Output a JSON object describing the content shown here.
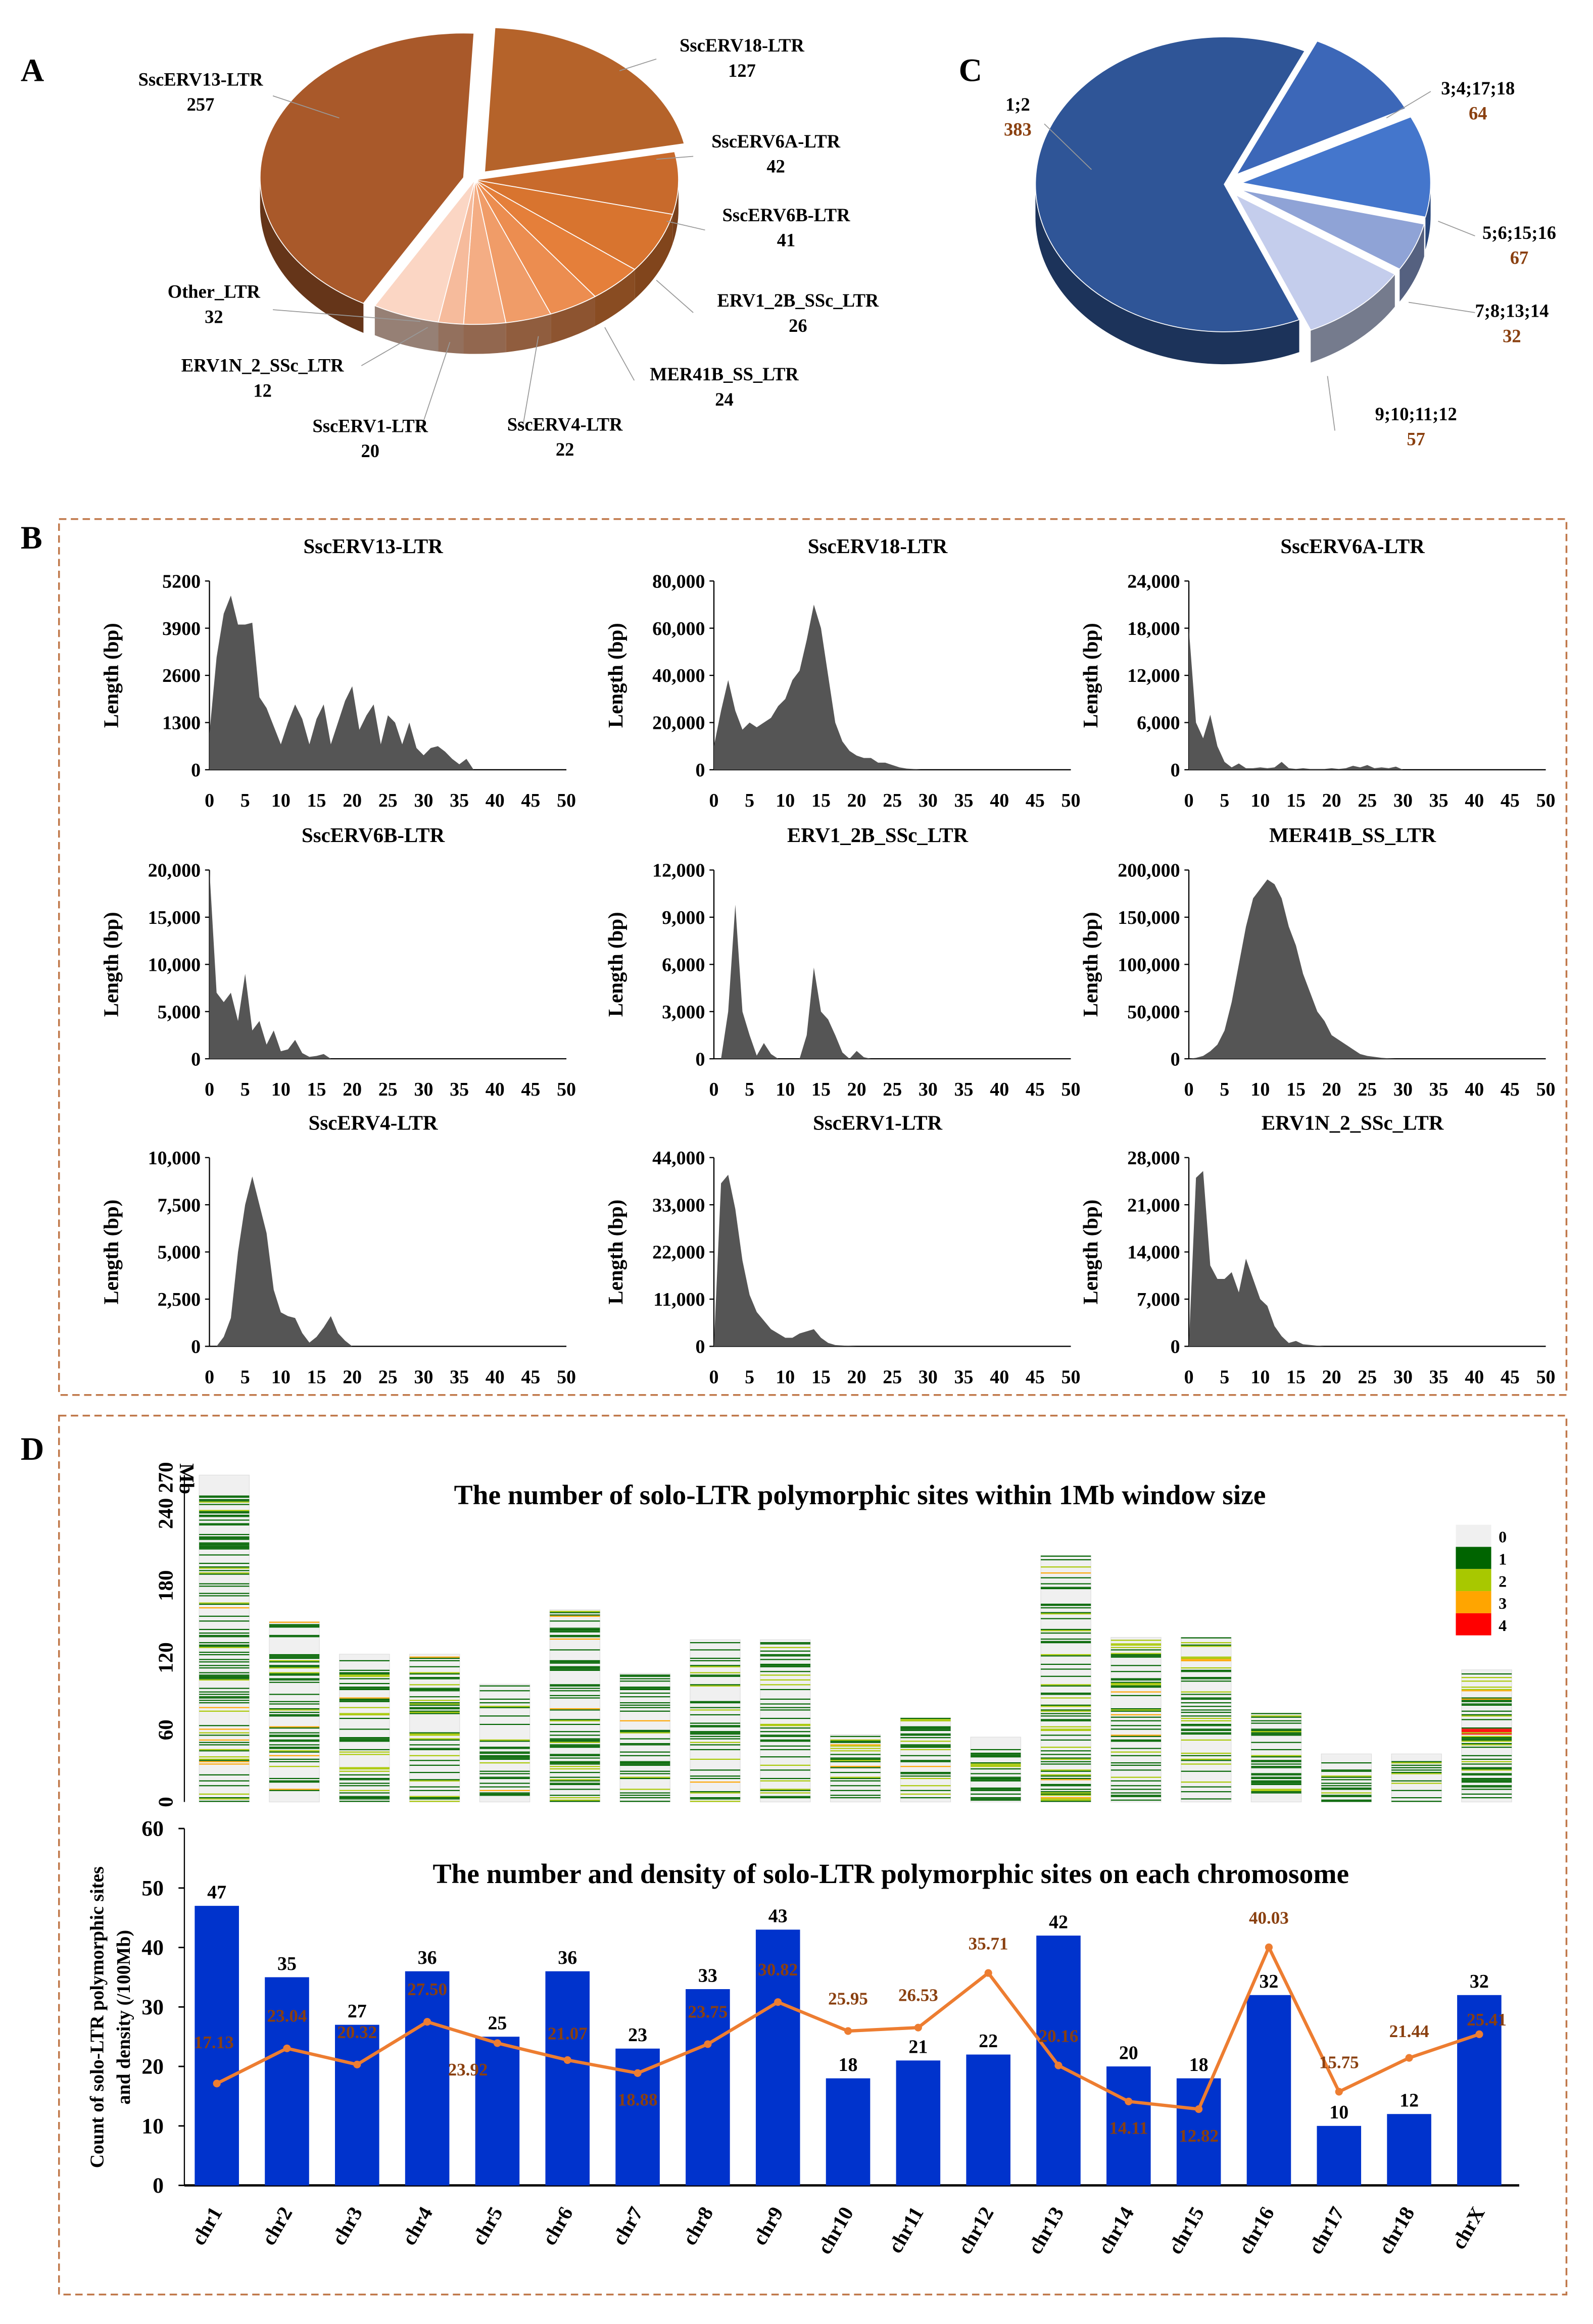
{
  "panel_labels": [
    "A",
    "B",
    "C",
    "D"
  ],
  "chart_data": [
    {
      "id": "A",
      "type": "pie",
      "slices": [
        {
          "label": "SscERV18-LTR",
          "value": 127,
          "color": "#b5632a"
        },
        {
          "label": "SscERV6A-LTR",
          "value": 42,
          "color": "#c86a2c"
        },
        {
          "label": "SscERV6B-LTR",
          "value": 41,
          "color": "#d8742f"
        },
        {
          "label": "ERV1_2B_SSc_LTR",
          "value": 26,
          "color": "#e57f3a"
        },
        {
          "label": "MER41B_SS_LTR",
          "value": 24,
          "color": "#ec8d50"
        },
        {
          "label": "SscERV4-LTR",
          "value": 22,
          "color": "#f09c68"
        },
        {
          "label": "SscERV1-LTR",
          "value": 20,
          "color": "#f4ad84"
        },
        {
          "label": "ERV1N_2_SSc_LTR",
          "value": 12,
          "color": "#f6bb9c"
        },
        {
          "label": "Other_LTR",
          "value": 32,
          "color": "#fbd6c4"
        },
        {
          "label": "SscERV13-LTR",
          "value": 257,
          "color": "#a9592a"
        }
      ]
    },
    {
      "id": "C",
      "type": "pie",
      "slices": [
        {
          "label": "3;4;17;18",
          "value": 64,
          "color": "#3c67b8"
        },
        {
          "label": "5;6;15;16",
          "value": 67,
          "color": "#4476cc"
        },
        {
          "label": "7;8;13;14",
          "value": 32,
          "color": "#8fa3d6"
        },
        {
          "label": "9;10;11;12",
          "value": 57,
          "color": "#c4cdec"
        },
        {
          "label": "1;2",
          "value": 383,
          "color": "#2f5597"
        }
      ]
    },
    {
      "id": "B",
      "type": "area",
      "xlim": [
        0,
        50
      ],
      "xticks": [
        "0",
        "5",
        "10",
        "15",
        "20",
        "25",
        "30",
        "35",
        "40",
        "45",
        "50"
      ],
      "ylabel": "Length (bp)",
      "panels": [
        {
          "title": "SscERV13-LTR",
          "ymax": 5200,
          "yticks": [
            "0",
            "1300",
            "2600",
            "3900",
            "5200"
          ],
          "values": [
            1000,
            3100,
            4300,
            4800,
            4000,
            4000,
            4050,
            2000,
            1700,
            1200,
            700,
            1300,
            1800,
            1400,
            700,
            1400,
            1800,
            700,
            1300,
            1900,
            2300,
            1100,
            1500,
            1800,
            700,
            1500,
            1300,
            700,
            1300,
            600,
            400,
            600,
            650,
            500,
            300,
            150,
            300,
            0
          ]
        },
        {
          "title": "SscERV18-LTR",
          "ymax": 80000,
          "yticks": [
            "0",
            "20,000",
            "40,000",
            "60,000",
            "80,000"
          ],
          "values": [
            10000,
            25000,
            38000,
            25000,
            17000,
            20000,
            18000,
            20000,
            22000,
            27000,
            30000,
            38000,
            42000,
            55000,
            70000,
            60000,
            40000,
            20000,
            12000,
            8000,
            6000,
            5000,
            5000,
            3000,
            3000,
            2000,
            1000,
            500,
            300,
            0
          ]
        },
        {
          "title": "SscERV6A-LTR",
          "ymax": 24000,
          "yticks": [
            "0",
            "6,000",
            "12,000",
            "18,000",
            "24,000"
          ],
          "values": [
            18000,
            6000,
            4000,
            7000,
            3000,
            1000,
            300,
            800,
            200,
            200,
            300,
            200,
            300,
            1000,
            200,
            100,
            200,
            100,
            100,
            100,
            200,
            100,
            200,
            500,
            300,
            600,
            200,
            300,
            200,
            400,
            0
          ]
        },
        {
          "title": "SscERV6B-LTR",
          "ymax": 20000,
          "yticks": [
            "0",
            "5,000",
            "10,000",
            "15,000",
            "20,000"
          ],
          "values": [
            20000,
            7000,
            6000,
            7000,
            4000,
            9000,
            3000,
            4000,
            1500,
            3000,
            800,
            1000,
            2000,
            600,
            200,
            300,
            500,
            0
          ]
        },
        {
          "title": "ERV1_2B_SSc_LTR",
          "ymax": 12000,
          "yticks": [
            "0",
            "3,000",
            "6,000",
            "9,000",
            "12,000"
          ],
          "values": [
            0,
            0,
            3000,
            9800,
            3000,
            1500,
            200,
            1000,
            300,
            0,
            0,
            0,
            0,
            1500,
            5800,
            3000,
            2500,
            1500,
            400,
            0,
            500,
            100,
            0
          ]
        },
        {
          "title": "MER41B_SS_LTR",
          "ymax": 200000,
          "yticks": [
            "0",
            "50,000",
            "100,000",
            "150,000",
            "200,000"
          ],
          "values": [
            0,
            1000,
            3000,
            8000,
            15000,
            30000,
            60000,
            100000,
            140000,
            170000,
            180000,
            190000,
            185000,
            170000,
            140000,
            120000,
            90000,
            70000,
            50000,
            40000,
            25000,
            20000,
            15000,
            10000,
            5000,
            3000,
            2000,
            1000,
            500,
            0
          ]
        },
        {
          "title": "SscERV4-LTR",
          "ymax": 10000,
          "yticks": [
            "0",
            "2,500",
            "5,000",
            "7,500",
            "10,000"
          ],
          "values": [
            0,
            0,
            500,
            1500,
            5000,
            7500,
            9000,
            7500,
            6000,
            3000,
            1800,
            1600,
            1500,
            700,
            200,
            500,
            1000,
            1600,
            700,
            300,
            0
          ]
        },
        {
          "title": "SscERV1-LTR",
          "ymax": 44000,
          "yticks": [
            "0",
            "11,000",
            "22,000",
            "33,000",
            "44,000"
          ],
          "values": [
            0,
            38000,
            40000,
            32000,
            20000,
            12000,
            8000,
            6000,
            4000,
            3000,
            2000,
            2000,
            3000,
            3500,
            4000,
            2000,
            800,
            300,
            200,
            100,
            0
          ]
        },
        {
          "title": "ERV1N_2_SSc_LTR",
          "ymax": 28000,
          "yticks": [
            "0",
            "7,000",
            "14,000",
            "21,000",
            "28,000"
          ],
          "values": [
            0,
            25000,
            26000,
            12000,
            10000,
            10000,
            11000,
            8000,
            13000,
            10000,
            7000,
            6000,
            3000,
            1500,
            500,
            800,
            300,
            200,
            100,
            0
          ]
        }
      ]
    },
    {
      "id": "D-top",
      "type": "heatmap",
      "title": "The number of solo-LTR polymorphic sites within 1Mb window size",
      "yunit": "Mb",
      "yticks": [
        "0",
        "60",
        "120",
        "180",
        "240",
        "270"
      ],
      "legend": [
        {
          "label": "0",
          "color": "#f0f0f0"
        },
        {
          "label": "1",
          "color": "#006400"
        },
        {
          "label": "2",
          "color": "#a8c800"
        },
        {
          "label": "3",
          "color": "#ffa500"
        },
        {
          "label": "4",
          "color": "#ff0000"
        }
      ],
      "chrom_lengths_mb": [
        272,
        150,
        123,
        123,
        98,
        160,
        107,
        135,
        135,
        56,
        70,
        54,
        205,
        137,
        137,
        74,
        40,
        40,
        110
      ]
    },
    {
      "id": "D-bottom",
      "type": "bar",
      "title": "The number and density of solo-LTR polymorphic sites on each chromosome",
      "ylabel": "Count of solo-LTR polymorphic sites and density (/100Mb)",
      "ylim": [
        0,
        60
      ],
      "yticks": [
        "0",
        "10",
        "20",
        "30",
        "40",
        "50",
        "60"
      ],
      "categories": [
        "chr1",
        "chr2",
        "chr3",
        "chr4",
        "chr5",
        "chr6",
        "chr7",
        "chr8",
        "chr9",
        "chr10",
        "chr11",
        "chr12",
        "chr13",
        "chr14",
        "chr15",
        "chr16",
        "chr17",
        "chr18",
        "chrX"
      ],
      "series": [
        {
          "name": "count",
          "type": "bar",
          "color": "#0033cc",
          "values": [
            47,
            35,
            27,
            36,
            25,
            36,
            23,
            33,
            43,
            18,
            21,
            22,
            42,
            20,
            18,
            32,
            10,
            12,
            32
          ]
        },
        {
          "name": "density",
          "type": "line",
          "color": "#ed7d31",
          "values": [
            "17.13",
            "23.04",
            "20.32",
            "27.50",
            "23.92",
            "21.07",
            "18.88",
            "23.75",
            "30.82",
            "25.95",
            "26.53",
            "35.71",
            "20.16",
            "14.11",
            "12.82",
            "40.03",
            "15.75",
            "21.44",
            "25.41"
          ]
        }
      ]
    }
  ]
}
